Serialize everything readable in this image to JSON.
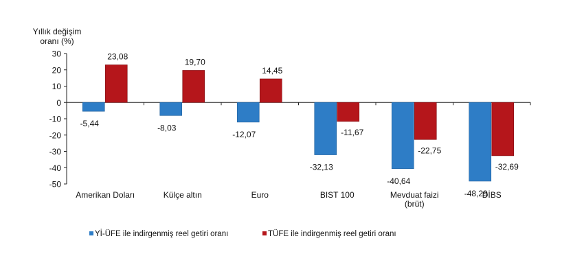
{
  "chart_data": {
    "type": "bar",
    "ylabel_lines": [
      "Yıllık değişim",
      "oranı (%)"
    ],
    "categories": [
      [
        "Amerikan Doları"
      ],
      [
        "Külçe altın"
      ],
      [
        "Euro"
      ],
      [
        "BIST 100"
      ],
      [
        "Mevduat faizi",
        "(brüt)"
      ],
      [
        "DİBS"
      ]
    ],
    "series": [
      {
        "name": "Yİ-ÜFE ile indirgenmiş reel getiri oranı",
        "color": "#2e7dc6",
        "values": [
          -5.44,
          -8.03,
          -12.07,
          -32.13,
          -40.64,
          -48.29
        ],
        "labels": [
          "-5,44",
          "-8,03",
          "-12,07",
          "-32,13",
          "-40,64",
          "-48,29"
        ]
      },
      {
        "name": "TÜFE ile indirgenmiş reel getiri oranı",
        "color": "#b5161b",
        "values": [
          23.08,
          19.7,
          14.45,
          -11.67,
          -22.75,
          -32.69
        ],
        "labels": [
          "23,08",
          "19,70",
          "14,45",
          "-11,67",
          "-22,75",
          "-32,69"
        ]
      }
    ],
    "ylim": [
      -50,
      30
    ],
    "yticks": [
      30,
      20,
      10,
      0,
      -10,
      -20,
      -30,
      -40,
      -50
    ],
    "grid": false,
    "legend": "bottom"
  }
}
